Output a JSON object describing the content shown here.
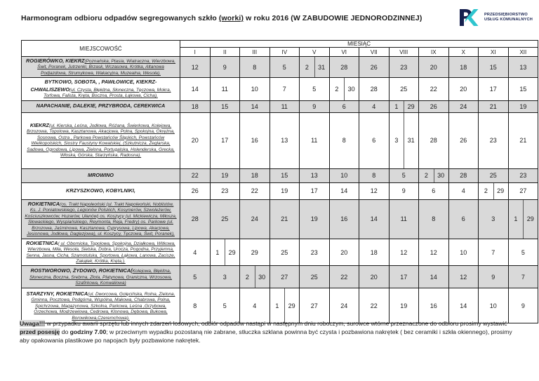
{
  "title": {
    "prefix": "Harmonogram odbioru odpadów segregowanych szkło ",
    "underlined": "(worki)",
    "suffix": " w roku 2016 (W ZABUDOWIE JEDNORODZINNEJ)"
  },
  "logo": {
    "line1": "PRZEDSIĘBIORSTWO",
    "line2": "USŁUG KOMUNALNYCH",
    "accent_color": "#2fc5ce",
    "dark_color": "#15204e"
  },
  "table": {
    "place_header": "MIEJSCOWOŚĆ",
    "month_group_header": "MIESIĄC",
    "months": [
      "I",
      "II",
      "III",
      "IV",
      "V",
      "VI",
      "VII",
      "VIII",
      "IX",
      "X",
      "XI",
      "XII"
    ],
    "shade_color": "#d9d9d9",
    "rows": [
      {
        "name": "ROGIERÓWKO, KIEKRZ",
        "detail": "(Poznańska,  Ptasia, Wiatraczna, Wierzbowa, Świt, Poranek, Jutrzenki, Brzask, Wczasowa, Krótka, Altanowa Podjazdowa, Strumykowa, Wakacyjna, Muzealna, Wesoła).",
        "shaded": true,
        "values": [
          "12",
          "9",
          "8",
          "5",
          "2|31",
          "28",
          "26",
          "23",
          "20",
          "18",
          "15",
          "13"
        ]
      },
      {
        "name": "BYTKOWO, SOBOTA, , PAWŁOWICE, KIEKRZ-CHWALISZEWO",
        "detail": "(ul. Czysta, Błękitna, Słoneczna, Tęczowa, Mokra, Torfowa, Falista, Kręta, Boczna, Prosta, Łąkowa, Cicha).",
        "shaded": false,
        "values": [
          "14",
          "11",
          "10",
          "7",
          "5",
          "2|30",
          "28",
          "25",
          "22",
          "20",
          "17",
          "15"
        ]
      },
      {
        "name": "NAPACHANIE, DALEKIE, PRZYBRODA, CEREKWICA",
        "detail": "",
        "shaded": true,
        "values": [
          "18",
          "15",
          "14",
          "11",
          "9",
          "6",
          "4",
          "1|29",
          "26",
          "24",
          "21",
          "19"
        ]
      },
      {
        "name": "KIEKRZ",
        "detail": "(ul. Kierska, Leśna, Jodłowa, Różana, Świerkowa, Kolejowa, Brzozowa, Topolowa, Kasztanowa, Akacjowa, Polna, Spokojna, Okrężna, Sosnowa, Ostra , Parkowa Powstańców Śląskich, Powstańców Wielkopolskich, Siostry Faustyny Kowalskiej, (Szkutnicza, Żeglarska, Sadowa, Ogrodowa, Lipowa, Zielona, Portugalska, Holenderska, Grecka, Włoska, Górska, Starzyńska, Radosna).",
        "shaded": false,
        "values": [
          "20",
          "17",
          "16",
          "13",
          "11",
          "8",
          "6",
          "3|31",
          "28",
          "26",
          "23",
          "21"
        ]
      },
      {
        "name": "MROWINO",
        "detail": "",
        "shaded": true,
        "values": [
          "22",
          "19",
          "18",
          "15",
          "13",
          "10",
          "8",
          "5",
          "2|30",
          "28",
          "25",
          "23"
        ]
      },
      {
        "name": "KRZYSZKOWO, KOBYLNIKI,",
        "detail": "",
        "shaded": false,
        "values": [
          "26",
          "23",
          "22",
          "19",
          "17",
          "14",
          "12",
          "9",
          "6",
          "4",
          "2|29",
          "27"
        ]
      },
      {
        "name": "ROKIETNICA",
        "detail": "(os. Trakt Napoleoński (ul. Trakt Napoleoński, Noblistów,  Ks. J. Poniatowskiego, Legionów Polskich, Kosynierów, Szwoleżerów, Kościuszkowców, Huzarów, Ułanów)  os. Koszycy (ul. Mickiewicza, Miłosza, Słowackiego, Wyspiańskiego, Reymonta, Reja, Fredry) os. Parkowe (ul. Brzozowa, Jaśminowa, Kasztanowa, Cyprysowa, Lipowa, Akacjowa, Jesionowa, Jodłowa, Daglezjowa), ul. Koszycy, Tęczowa, Świt, Poranek),",
        "shaded": true,
        "values": [
          "28",
          "25",
          "24",
          "21",
          "19",
          "16",
          "14",
          "11",
          "8",
          "6",
          "3",
          "1|29"
        ]
      },
      {
        "name": "ROKIETNICA",
        "detail": "( ul. Obornicka, Topolowa, Spokojna, Działkowa, Witkowa, Wierzbowa, Miła, Wesoła, Sielska, Dobra, Urocza, Pogodna, Przyjemna, Senna, Jasna, Cicha, Szamotulska, Sportowa, Łąkowa, Lanowa, Zacisze, Zakątek, Krótka, Kręta,).",
        "shaded": false,
        "values": [
          "4",
          "1|29",
          "29",
          "25",
          "23",
          "20",
          "18",
          "12",
          "12",
          "10",
          "7",
          "5"
        ]
      },
      {
        "name": "ROSTWOROWO, ŻYDOWO, ROKIETNICA(",
        "detail": "Kolejowa, Błękitna, Słoneczna, Boczna, Srebrna, Złota, Platynowa, Graniczna, Wrzosowa, Szafirkowa, Konwaliowa)",
        "shaded": true,
        "values": [
          "5",
          "3",
          "2|30",
          "27",
          "25",
          "22",
          "20",
          "17",
          "14",
          "12",
          "9",
          "7"
        ]
      },
      {
        "name": "STARZYNY, ROKIETNICA",
        "detail": "(ul. Dworcowa, Golęcińska, Rolna, Zielona, Gminna, Pocztowa, Podgórna, Wspólna, Makowa, Chabrowa, Polna, Spichrzowa, Magazynowa, Szkolna, Parkowa, Leśna ,Grzybowa, Orzechowa, Modrzewiowa, Cedrowa, Klonowa, Dębowa, Bukowa, Borowikowa,Czeremchowa).",
        "shaded": false,
        "values": [
          "8",
          "5",
          "4",
          "1|29",
          "27",
          "24",
          "22",
          "19",
          "16",
          "14",
          "10",
          "9"
        ]
      }
    ]
  },
  "footer": {
    "warn": "Uwaga!!!",
    "part1": " w przypadku awarii sprzętu lub innych zdarzeń losowych, odbiór odpadów nastąpi w następnym dniu roboczym, surowce wtórne przeznaczone do odbioru prosimy wystawić ",
    "highlight": "przed posesję",
    "part2": "  do ",
    "bold_time": "godziny 7.00",
    "part3": "; w przeciwnym wypadku pozostaną nie zabrane, stłuczka szklana powinna być czysta i pozbawiona nakrętek   ( bez ceramiki i szkła okiennego), prosimy aby opakowania plastikowe po napojach były pozbawione nakrętek."
  }
}
